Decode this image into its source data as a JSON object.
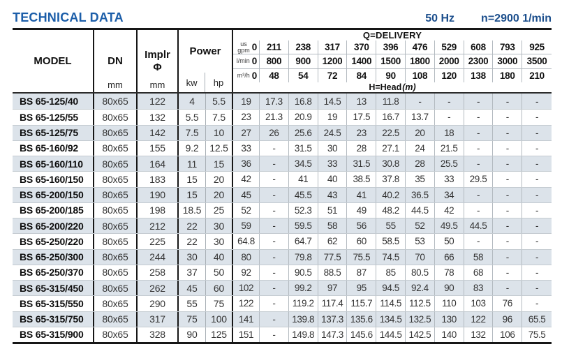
{
  "page": {
    "title": "TECHNICAL DATA",
    "frequency": "50 Hz",
    "speed": "n=2900 1/min"
  },
  "table": {
    "header": {
      "model": "MODEL",
      "dn": "DN",
      "dn_unit": "mm",
      "impeller_line1": "Implr",
      "impeller_line2": "Φ",
      "impeller_unit": "mm",
      "power": "Power",
      "power_kw": "kw",
      "power_hp": "hp",
      "delivery_title": "Q=DELIVERY",
      "head_title": "H=Head",
      "head_unit": "(m)",
      "unit_rows": [
        {
          "label_lines": [
            "us",
            "gpm"
          ],
          "values": [
            "0",
            "211",
            "238",
            "317",
            "370",
            "396",
            "476",
            "529",
            "608",
            "793",
            "925"
          ]
        },
        {
          "label_lines": [
            "l/min"
          ],
          "values": [
            "0",
            "800",
            "900",
            "1200",
            "1400",
            "1500",
            "1800",
            "2000",
            "2300",
            "3000",
            "3500"
          ]
        },
        {
          "label_lines": [
            "m³/h"
          ],
          "values": [
            "0",
            "48",
            "54",
            "72",
            "84",
            "90",
            "108",
            "120",
            "138",
            "180",
            "210"
          ]
        }
      ]
    },
    "rows": [
      {
        "model": "BS 65-125/40",
        "dn": "80x65",
        "impeller": "122",
        "kw": "4",
        "hp": "5.5",
        "head": [
          "19",
          "17.3",
          "16.8",
          "14.5",
          "13",
          "11.8",
          "-",
          "-",
          "-",
          "-",
          "-"
        ]
      },
      {
        "model": "BS 65-125/55",
        "dn": "80x65",
        "impeller": "132",
        "kw": "5.5",
        "hp": "7.5",
        "head": [
          "23",
          "21.3",
          "20.9",
          "19",
          "17.5",
          "16.7",
          "13.7",
          "-",
          "-",
          "-",
          "-"
        ]
      },
      {
        "model": "BS 65-125/75",
        "dn": "80x65",
        "impeller": "142",
        "kw": "7.5",
        "hp": "10",
        "head": [
          "27",
          "26",
          "25.6",
          "24.5",
          "23",
          "22.5",
          "20",
          "18",
          "-",
          "-",
          "-"
        ]
      },
      {
        "model": "BS 65-160/92",
        "dn": "80x65",
        "impeller": "155",
        "kw": "9.2",
        "hp": "12.5",
        "head": [
          "33",
          "-",
          "31.5",
          "30",
          "28",
          "27.1",
          "24",
          "21.5",
          "-",
          "-",
          "-"
        ]
      },
      {
        "model": "BS 65-160/110",
        "dn": "80x65",
        "impeller": "164",
        "kw": "11",
        "hp": "15",
        "head": [
          "36",
          "-",
          "34.5",
          "33",
          "31.5",
          "30.8",
          "28",
          "25.5",
          "-",
          "-",
          "-"
        ]
      },
      {
        "model": "BS 65-160/150",
        "dn": "80x65",
        "impeller": "183",
        "kw": "15",
        "hp": "20",
        "head": [
          "42",
          "-",
          "41",
          "40",
          "38.5",
          "37.8",
          "35",
          "33",
          "29.5",
          "-",
          "-"
        ]
      },
      {
        "model": "BS 65-200/150",
        "dn": "80x65",
        "impeller": "190",
        "kw": "15",
        "hp": "20",
        "head": [
          "45",
          "-",
          "45.5",
          "43",
          "41",
          "40.2",
          "36.5",
          "34",
          "-",
          "-",
          "-"
        ]
      },
      {
        "model": "BS 65-200/185",
        "dn": "80x65",
        "impeller": "198",
        "kw": "18.5",
        "hp": "25",
        "head": [
          "52",
          "-",
          "52.3",
          "51",
          "49",
          "48.2",
          "44.5",
          "42",
          "-",
          "-",
          "-"
        ]
      },
      {
        "model": "BS 65-200/220",
        "dn": "80x65",
        "impeller": "212",
        "kw": "22",
        "hp": "30",
        "head": [
          "59",
          "-",
          "59.5",
          "58",
          "56",
          "55",
          "52",
          "49.5",
          "44.5",
          "-",
          "-"
        ]
      },
      {
        "model": "BS 65-250/220",
        "dn": "80x65",
        "impeller": "225",
        "kw": "22",
        "hp": "30",
        "head": [
          "64.8",
          "-",
          "64.7",
          "62",
          "60",
          "58.5",
          "53",
          "50",
          "-",
          "-",
          "-"
        ]
      },
      {
        "model": "BS 65-250/300",
        "dn": "80x65",
        "impeller": "244",
        "kw": "30",
        "hp": "40",
        "head": [
          "80",
          "-",
          "79.8",
          "77.5",
          "75.5",
          "74.5",
          "70",
          "66",
          "58",
          "-",
          "-"
        ]
      },
      {
        "model": "BS 65-250/370",
        "dn": "80x65",
        "impeller": "258",
        "kw": "37",
        "hp": "50",
        "head": [
          "92",
          "-",
          "90.5",
          "88.5",
          "87",
          "85",
          "80.5",
          "78",
          "68",
          "-",
          "-"
        ]
      },
      {
        "model": "BS 65-315/450",
        "dn": "80x65",
        "impeller": "262",
        "kw": "45",
        "hp": "60",
        "head": [
          "102",
          "-",
          "99.2",
          "97",
          "95",
          "94.5",
          "92.4",
          "90",
          "83",
          "-",
          "-"
        ]
      },
      {
        "model": "BS 65-315/550",
        "dn": "80x65",
        "impeller": "290",
        "kw": "55",
        "hp": "75",
        "head": [
          "122",
          "-",
          "119.2",
          "117.4",
          "115.7",
          "114.5",
          "112.5",
          "110",
          "103",
          "76",
          "-"
        ]
      },
      {
        "model": "BS 65-315/750",
        "dn": "80x65",
        "impeller": "317",
        "kw": "75",
        "hp": "100",
        "head": [
          "141",
          "-",
          "139.8",
          "137.3",
          "135.6",
          "134.5",
          "132.5",
          "130",
          "122",
          "96",
          "65.5"
        ]
      },
      {
        "model": "BS 65-315/900",
        "dn": "80x65",
        "impeller": "328",
        "kw": "90",
        "hp": "125",
        "head": [
          "151",
          "-",
          "149.8",
          "147.3",
          "145.6",
          "144.5",
          "142.5",
          "140",
          "132",
          "106",
          "75.5"
        ]
      }
    ]
  }
}
